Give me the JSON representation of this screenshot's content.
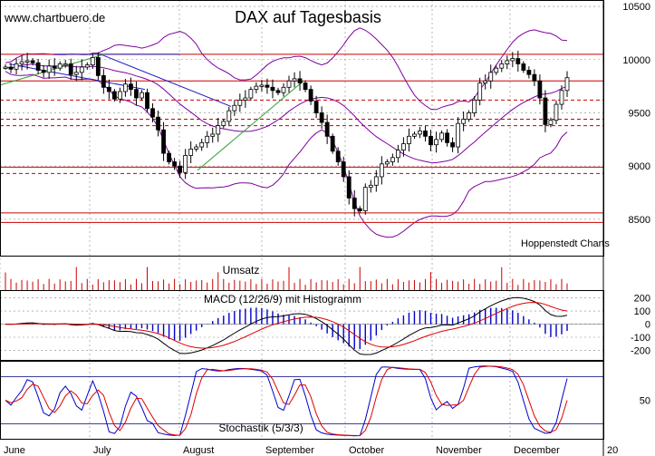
{
  "page": {
    "watermark": "www.chartbuero.de",
    "title": "DAX auf Tagesbasis",
    "source": "Hoppenstedt Charts"
  },
  "chart_data": [
    {
      "type": "line",
      "panel": "price",
      "title": "DAX auf Tagesbasis",
      "ylim": [
        8150,
        10560
      ],
      "y_ticks": [
        10500,
        10000,
        9500,
        9000,
        8500
      ],
      "x_months": [
        "June",
        "July",
        "August",
        "September",
        "October",
        "November",
        "December",
        "20"
      ],
      "candles_close": [
        9930,
        9910,
        9960,
        9980,
        9990,
        9970,
        9900,
        9880,
        9940,
        9920,
        9960,
        9960,
        9860,
        9880,
        9930,
        9950,
        10020,
        9850,
        9740,
        9700,
        9630,
        9700,
        9770,
        9720,
        9640,
        9690,
        9540,
        9460,
        9340,
        9120,
        9040,
        9000,
        8940,
        9100,
        9160,
        9180,
        9220,
        9280,
        9300,
        9380,
        9420,
        9520,
        9570,
        9620,
        9640,
        9720,
        9750,
        9760,
        9740,
        9710,
        9690,
        9740,
        9800,
        9820,
        9780,
        9720,
        9610,
        9500,
        9410,
        9280,
        9140,
        9040,
        8900,
        8700,
        8600,
        8580,
        8800,
        8820,
        8900,
        9020,
        9040,
        9080,
        9150,
        9210,
        9280,
        9300,
        9330,
        9280,
        9200,
        9250,
        9310,
        9220,
        9180,
        9400,
        9440,
        9500,
        9620,
        9780,
        9800,
        9880,
        9920,
        9960,
        9990,
        10010,
        9960,
        9900,
        9860,
        9800,
        9640,
        9390,
        9430,
        9580,
        9710,
        9830
      ],
      "resistance_lines": [
        10050,
        9800,
        9620,
        9440,
        9380,
        8990,
        8930,
        8560,
        8470
      ],
      "series": [
        {
          "name": "",
          "role": "upper-band",
          "color": "#8000a0"
        },
        {
          "name": "",
          "role": "middle-band",
          "color": "#8000a0"
        },
        {
          "name": "",
          "role": "lower-band",
          "color": "#8000a0"
        }
      ]
    },
    {
      "type": "bar",
      "panel": "volume",
      "title": "Umsatz",
      "color": "#cc0000"
    },
    {
      "type": "line",
      "panel": "macd",
      "title": "MACD (12/26/9) mit Histogramm",
      "ylim": [
        -280,
        260
      ],
      "y_ticks": [
        200,
        100,
        0,
        -100,
        -200
      ],
      "series": [
        {
          "name": "",
          "role": "macd",
          "color": "#000000"
        },
        {
          "name": "",
          "role": "signal",
          "color": "#dd0000"
        },
        {
          "name": "",
          "role": "histogram",
          "color": "#0000cc"
        }
      ]
    },
    {
      "type": "line",
      "panel": "stochastic",
      "title": "Stochastik (5/3/3)",
      "ylim": [
        0,
        100
      ],
      "y_ticks": [
        50
      ],
      "reference_lines": [
        80,
        20
      ],
      "series": [
        {
          "name": "",
          "role": "%K",
          "color": "#0000cc"
        },
        {
          "name": "",
          "role": "%D",
          "color": "#dd0000"
        }
      ]
    }
  ],
  "colors": {
    "candle": "#000000",
    "resistance": "#cc0000",
    "band": "#8000a0",
    "trend_blue": "#2020c0",
    "trend_green": "#30a030",
    "grid": "#888888"
  }
}
